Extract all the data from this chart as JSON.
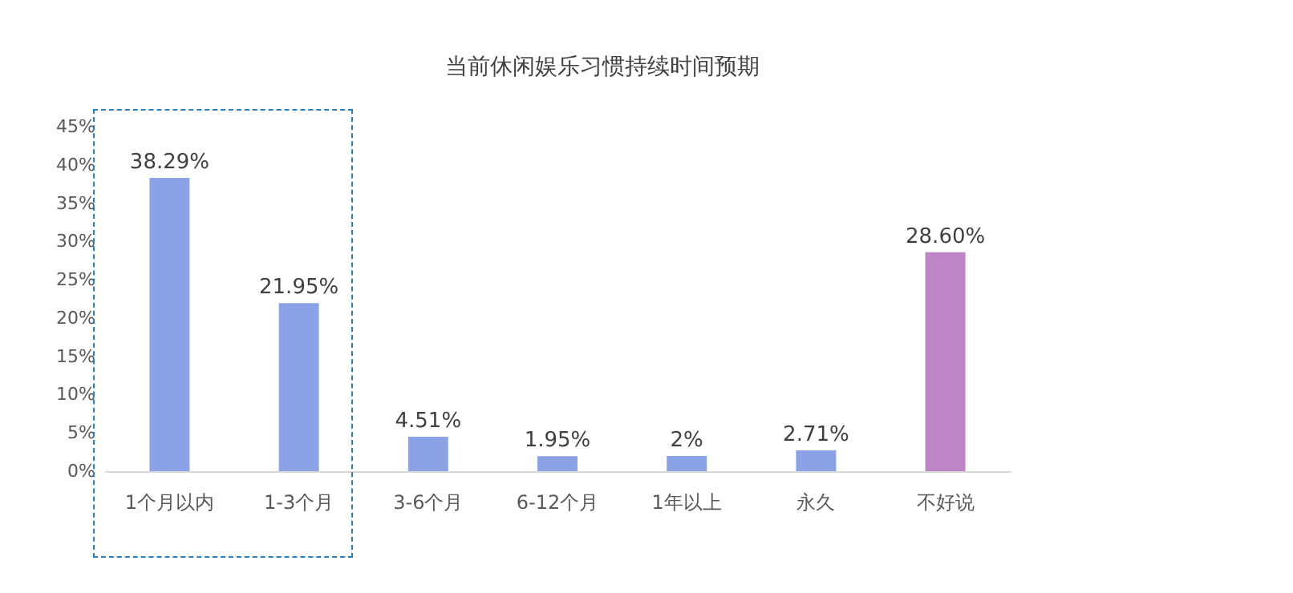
{
  "chart_data": {
    "type": "bar",
    "title": "当前休闲娱乐习惯持续时间预期",
    "categories": [
      "1个月以内",
      "1-3个月",
      "3-6个月",
      "6-12个月",
      "1年以上",
      "永久",
      "不好说"
    ],
    "values": [
      38.29,
      21.95,
      4.51,
      1.95,
      2,
      2.71,
      28.6
    ],
    "colors": [
      "#8ba3e6",
      "#8ba3e6",
      "#8ba3e6",
      "#8ba3e6",
      "#8ba3e6",
      "#8ba3e6",
      "#bd85c6"
    ],
    "value_labels": [
      "38.29%",
      "21.95%",
      "4.51%",
      "1.95%",
      "2%",
      "2.71%",
      "28.60%"
    ],
    "ylim": [
      0,
      45
    ],
    "yticks": [
      {
        "value": 0,
        "label": "0%"
      },
      {
        "value": 5,
        "label": "5%"
      },
      {
        "value": 10,
        "label": "10%"
      },
      {
        "value": 15,
        "label": "15%"
      },
      {
        "value": 20,
        "label": "20%"
      },
      {
        "value": 25,
        "label": "25%"
      },
      {
        "value": 30,
        "label": "30%"
      },
      {
        "value": 35,
        "label": "35%"
      },
      {
        "value": 40,
        "label": "40%"
      },
      {
        "value": 45,
        "label": "45%"
      }
    ],
    "grid": false
  }
}
